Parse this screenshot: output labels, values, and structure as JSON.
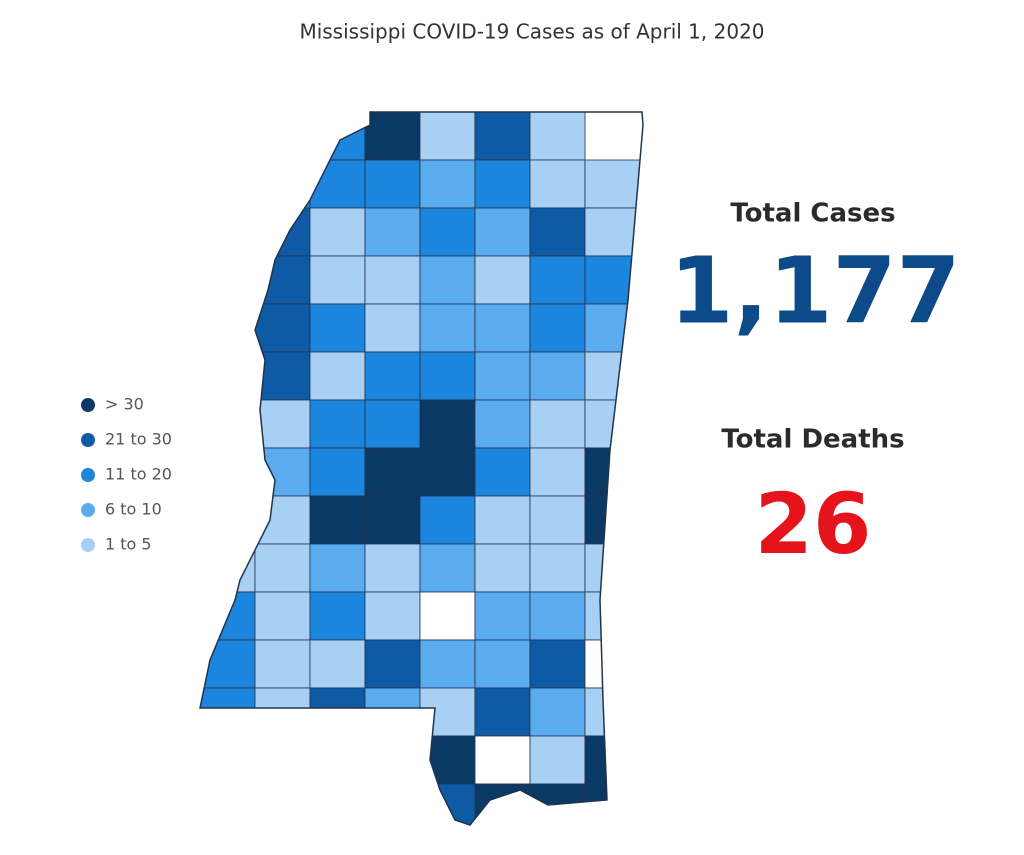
{
  "title": "Mississippi COVID-19 Cases as of April 1, 2020",
  "legend": [
    {
      "label": "> 30",
      "color": "#0b3966"
    },
    {
      "label": "21 to 30",
      "color": "#0f5aa5"
    },
    {
      "label": "11 to 20",
      "color": "#1c86df"
    },
    {
      "label": "6 to 10",
      "color": "#5babef"
    },
    {
      "label": "1 to 5",
      "color": "#a8d0f4"
    }
  ],
  "stats": {
    "cases_label": "Total Cases",
    "cases_value": "1,177",
    "deaths_label": "Total Deaths",
    "deaths_value": "26"
  }
}
